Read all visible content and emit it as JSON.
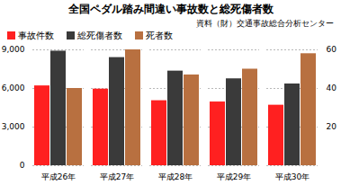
{
  "chart_data": {
    "type": "bar",
    "title": "全国ペダル踏み間違い事故数と総死傷者数",
    "annotations": [
      "資料（財）交通事故総合分析センター"
    ],
    "categories": [
      "平成26年",
      "平成27年",
      "平成28年",
      "平成29年",
      "平成30年"
    ],
    "series": [
      {
        "name": "事故件数",
        "color": "#ff2020",
        "values": [
          6200,
          5950,
          5050,
          4950,
          4700
        ]
      },
      {
        "name": "総死傷者数",
        "color": "#3a3a3a",
        "values": [
          8900,
          8400,
          7350,
          6750,
          6350
        ]
      },
      {
        "name": "死者数",
        "color": "#b87040",
        "values": [
          40,
          60,
          47,
          50,
          58
        ],
        "axis": "y2"
      }
    ],
    "ylim": [
      0,
      9000
    ],
    "yticks": [
      0,
      3000,
      6000,
      9000
    ],
    "y2lim": [
      0,
      60
    ],
    "y2ticks": [
      20,
      40,
      60
    ],
    "grid": true,
    "legend": "top"
  }
}
